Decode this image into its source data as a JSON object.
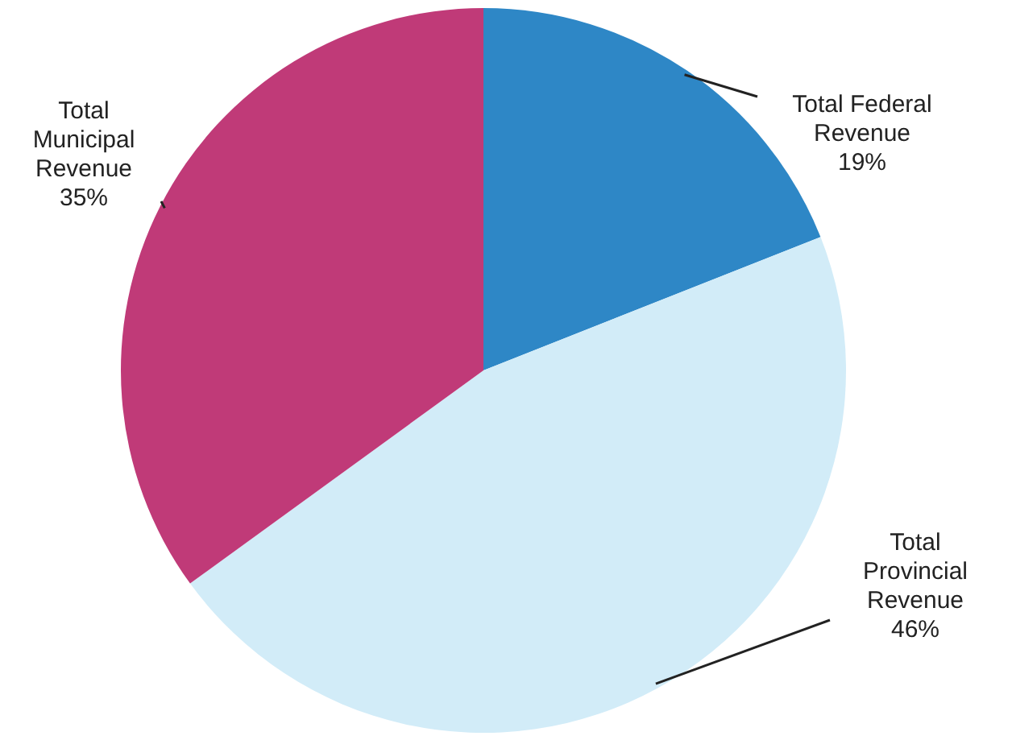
{
  "chart_data": {
    "type": "pie",
    "categories": [
      "Total Federal Revenue",
      "Total Provincial Revenue",
      "Total Municipal Revenue"
    ],
    "values": [
      19,
      46,
      35
    ],
    "colors": [
      "#2e87c6",
      "#d2ecf8",
      "#c03a78"
    ],
    "value_labels": [
      "19%",
      "46%",
      "35%"
    ],
    "legend": false
  }
}
